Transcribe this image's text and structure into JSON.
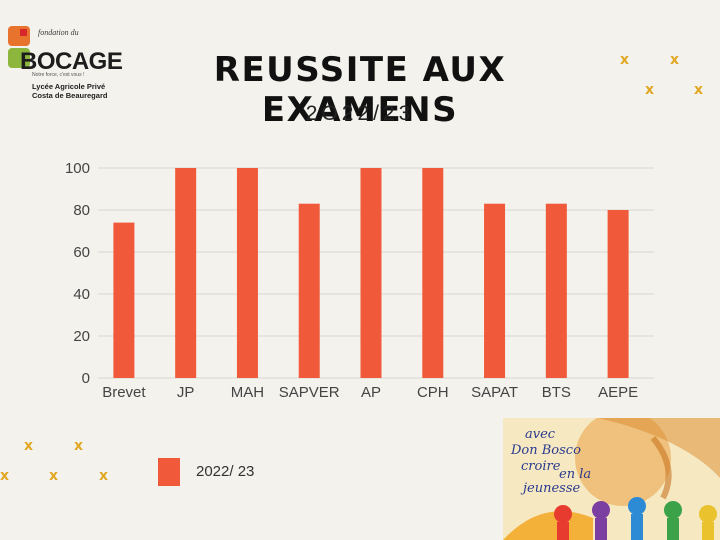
{
  "logo": {
    "fondation": "fondation du",
    "name": "BOCAGE",
    "tagline": "Notre force, c'est vous !",
    "school_line1": "Lycée Agricole Privé",
    "school_line2": "Costa de Beauregard"
  },
  "header": {
    "title": "REUSSITE AUX EXAMENS",
    "subtitle": "2O22/23"
  },
  "decorations": {
    "x_mark": "x"
  },
  "chart_data": {
    "type": "bar",
    "categories": [
      "Brevet",
      "JP",
      "MAH",
      "SAPVER",
      "AP",
      "CPH",
      "SAPAT",
      "BTS",
      "AEPE"
    ],
    "series": [
      {
        "name": "2022/ 23",
        "values": [
          74,
          100,
          100,
          83,
          100,
          100,
          83,
          83,
          80
        ],
        "color": "#f05a3a"
      }
    ],
    "yticks": [
      0,
      20,
      40,
      60,
      80,
      100
    ],
    "ylim": [
      0,
      100
    ],
    "grid": true,
    "legend_position": "bottom-left"
  },
  "legend": {
    "label": "2022/ 23"
  },
  "banner": {
    "line1": "avec",
    "line2": "Don Bosco",
    "line3": "croire",
    "line4": "en la",
    "line5": "jeunesse"
  }
}
